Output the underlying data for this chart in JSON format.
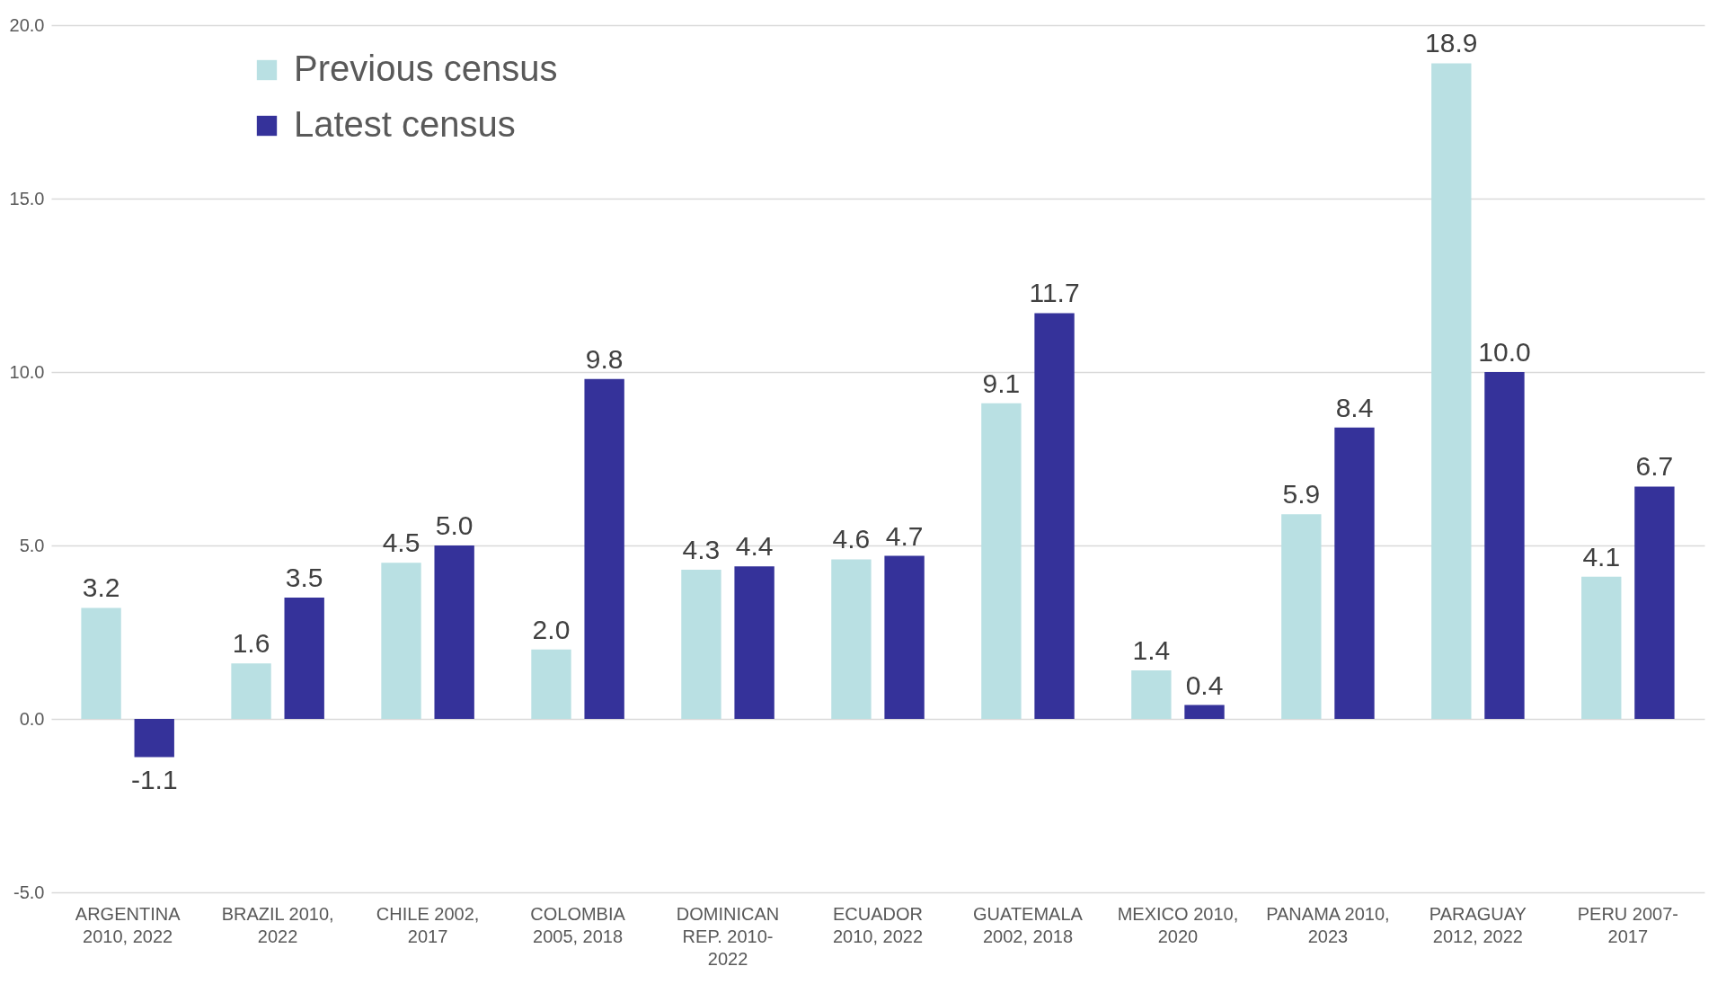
{
  "chart_data": {
    "type": "bar",
    "categories": [
      "ARGENTINA 2010, 2022",
      "BRAZIL 2010, 2022",
      "CHILE 2002, 2017",
      "COLOMBIA 2005, 2018",
      "DOMINICAN REP. 2010-2022",
      "ECUADOR 2010, 2022",
      "GUATEMALA 2002, 2018",
      "MEXICO 2010, 2020",
      "PANAMA 2010, 2023",
      "PARAGUAY 2012, 2022",
      "PERU 2007-2017"
    ],
    "series": [
      {
        "name": "Previous census",
        "color": "#b9e0e3",
        "values": [
          3.2,
          1.6,
          4.5,
          2.0,
          4.3,
          4.6,
          9.1,
          1.4,
          5.9,
          18.9,
          4.1
        ],
        "value_labels": [
          "3.2",
          "1.6",
          "4.5",
          "2.0",
          "4.3",
          "4.6",
          "9.1",
          "1.4",
          "5.9",
          "18.9",
          "4.1"
        ]
      },
      {
        "name": "Latest census",
        "color": "#35329a",
        "values": [
          -1.1,
          3.5,
          5.0,
          9.8,
          4.4,
          4.7,
          11.7,
          0.4,
          8.4,
          10.0,
          6.7
        ],
        "value_labels": [
          "-1.1",
          "3.5",
          "5.0",
          "9.8",
          "4.4",
          "4.7",
          "11.7",
          "0.4",
          "8.4",
          "10.0",
          "6.7"
        ]
      }
    ],
    "ylim": [
      -5,
      20
    ],
    "yticks": [
      {
        "value": -5,
        "label": "-5.0"
      },
      {
        "value": 0,
        "label": "0.0"
      },
      {
        "value": 5,
        "label": "5.0"
      },
      {
        "value": 10,
        "label": "10.0"
      },
      {
        "value": 15,
        "label": "15.0"
      },
      {
        "value": 20,
        "label": "20.0"
      }
    ],
    "grid": "y",
    "legend": "top left"
  }
}
